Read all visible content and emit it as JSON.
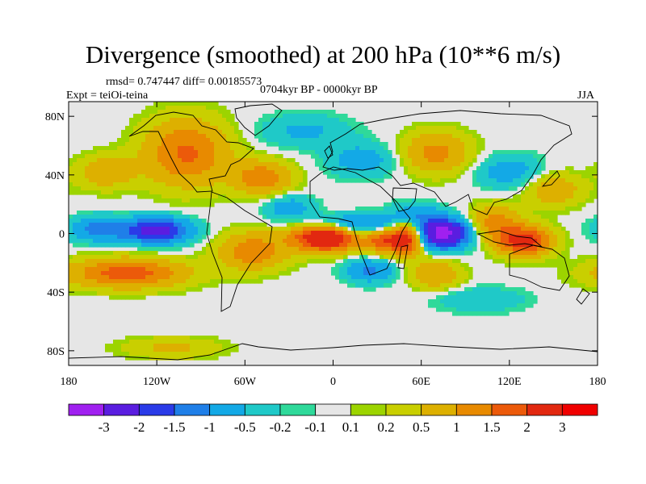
{
  "figure": {
    "title": "Divergence (smoothed) at 200 hPa (10**6 m/s)",
    "stats": "rmsd= 0.747447 diff= 0.00185573",
    "experiment": "Expt = teiOi-teina",
    "period": "0704kyr BP - 0000kyr BP",
    "season": "JJA"
  },
  "map": {
    "projection": "cylindrical equidistant",
    "lon_range": [
      -180,
      180
    ],
    "lat_range": [
      -90,
      90
    ],
    "center_lon": 0,
    "lat_ticks": [
      {
        "lat": 80,
        "label": "80N"
      },
      {
        "lat": 40,
        "label": "40N"
      },
      {
        "lat": 0,
        "label": "0"
      },
      {
        "lat": -40,
        "label": "40S"
      },
      {
        "lat": -80,
        "label": "80S"
      }
    ],
    "lon_ticks": [
      {
        "lon": -180,
        "label": "180"
      },
      {
        "lon": -120,
        "label": "120W"
      },
      {
        "lon": -60,
        "label": "60W"
      },
      {
        "lon": 0,
        "label": "0"
      },
      {
        "lon": 60,
        "label": "60E"
      },
      {
        "lon": 120,
        "label": "120E"
      },
      {
        "lon": 180,
        "label": "180"
      }
    ],
    "anomalies": [
      {
        "name": "tropical-east-atlantic-max",
        "lon": -5,
        "lat": -2,
        "amp": 3.2,
        "slon": 16,
        "slat": 7
      },
      {
        "name": "indian-ocean-min",
        "lon": 75,
        "lat": 0,
        "amp": -3.4,
        "slon": 12,
        "slat": 7
      },
      {
        "name": "east-africa-max",
        "lon": 50,
        "lat": -3,
        "amp": 2.6,
        "slon": 8,
        "slat": 8
      },
      {
        "name": "central-africa-max",
        "lon": 33,
        "lat": -5,
        "amp": 1.6,
        "slon": 8,
        "slat": 6
      },
      {
        "name": "maritime-continent-max",
        "lon": 130,
        "lat": -5,
        "amp": 2.4,
        "slon": 13,
        "slat": 7
      },
      {
        "name": "west-pacific-max",
        "lon": 110,
        "lat": 8,
        "amp": 1.2,
        "slon": 12,
        "slat": 8
      },
      {
        "name": "east-pacific-min",
        "lon": -120,
        "lat": 2,
        "amp": -2.4,
        "slon": 16,
        "slat": 6
      },
      {
        "name": "central-pacific-min",
        "lon": -160,
        "lat": 3,
        "amp": -1.2,
        "slon": 14,
        "slat": 6
      },
      {
        "name": "south-pacific-max",
        "lon": -140,
        "lat": -27,
        "amp": 1.8,
        "slon": 28,
        "slat": 7
      },
      {
        "name": "south-america-max",
        "lon": -55,
        "lat": -12,
        "amp": 1.4,
        "slon": 16,
        "slat": 9
      },
      {
        "name": "north-africa-min",
        "lon": 10,
        "lat": 6,
        "amp": -1.6,
        "slon": 22,
        "slat": 5
      },
      {
        "name": "arabian-min",
        "lon": 55,
        "lat": 12,
        "amp": -1.0,
        "slon": 12,
        "slat": 6
      },
      {
        "name": "southern-africa-min",
        "lon": 25,
        "lat": -25,
        "amp": -1.1,
        "slon": 12,
        "slat": 6
      },
      {
        "name": "south-indian-max",
        "lon": 70,
        "lat": -28,
        "amp": 1.0,
        "slon": 12,
        "slat": 7
      },
      {
        "name": "north-pacific-max",
        "lon": -155,
        "lat": 42,
        "amp": 0.9,
        "slon": 14,
        "slat": 8
      },
      {
        "name": "north-america-max",
        "lon": -100,
        "lat": 55,
        "amp": 1.6,
        "slon": 20,
        "slat": 16
      },
      {
        "name": "north-atlantic-max",
        "lon": -48,
        "lat": 38,
        "amp": 1.4,
        "slon": 14,
        "slat": 8
      },
      {
        "name": "atlantic-min",
        "lon": -30,
        "lat": 18,
        "amp": -0.8,
        "slon": 12,
        "slat": 6
      },
      {
        "name": "central-asia-max",
        "lon": 70,
        "lat": 55,
        "amp": 1.2,
        "slon": 16,
        "slat": 10
      },
      {
        "name": "europe-min",
        "lon": 20,
        "lat": 50,
        "amp": -0.8,
        "slon": 16,
        "slat": 8
      },
      {
        "name": "arctic-min",
        "lon": -20,
        "lat": 70,
        "amp": -0.6,
        "slon": 22,
        "slat": 8
      },
      {
        "name": "east-asia-min",
        "lon": 120,
        "lat": 42,
        "amp": -0.8,
        "slon": 16,
        "slat": 8
      },
      {
        "name": "west-pacific-north-max",
        "lon": 150,
        "lat": 30,
        "amp": 0.9,
        "slon": 14,
        "slat": 8
      },
      {
        "name": "antarctic-max",
        "lon": -110,
        "lat": -78,
        "amp": 0.6,
        "slon": 24,
        "slat": 5
      },
      {
        "name": "south-indian-min",
        "lon": 100,
        "lat": -45,
        "amp": -0.5,
        "slon": 22,
        "slat": 6
      }
    ]
  },
  "colorbar": {
    "labels": [
      "-3",
      "-2",
      "-1.5",
      "-1",
      "-0.5",
      "-0.2",
      "-0.1",
      "0.1",
      "0.2",
      "0.5",
      "1",
      "1.5",
      "2",
      "3"
    ],
    "levels": [
      -3,
      -2,
      -1.5,
      -1,
      -0.5,
      -0.2,
      -0.1,
      0.1,
      0.2,
      0.5,
      1,
      1.5,
      2,
      3
    ],
    "colors": [
      "#a020f0",
      "#5a1de0",
      "#2a3be8",
      "#1f7fe8",
      "#13a9e6",
      "#1fc9c8",
      "#2fd99a",
      "#e6e6e6",
      "#9cd400",
      "#c9cf00",
      "#ddb000",
      "#e88a00",
      "#ec5a0a",
      "#e22810",
      "#f00000"
    ]
  }
}
